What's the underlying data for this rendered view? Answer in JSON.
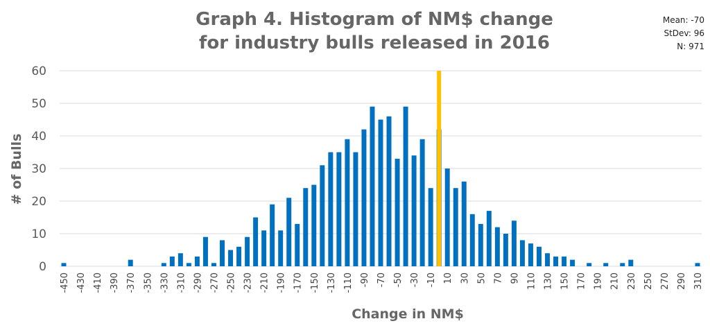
{
  "chart_data": {
    "type": "bar",
    "title_line_1": "Graph 4. Histogram of NM$ change",
    "title_line_2": "for industry bulls released in 2016",
    "xlabel": "Change in NM$",
    "ylabel": "# of Bulls",
    "ylim": [
      0,
      60
    ],
    "yticks": [
      "0",
      "10",
      "20",
      "30",
      "40",
      "50",
      "60"
    ],
    "grid": true,
    "bar_color": "#0070C0",
    "marker_color": "#FFC000",
    "marker_x": 0,
    "stats": {
      "mean": "Mean: -70",
      "stdev": "StDev: 96",
      "n": "N: 971"
    },
    "categories": [
      "-450",
      "-440",
      "-430",
      "-420",
      "-410",
      "-400",
      "-390",
      "-380",
      "-370",
      "-360",
      "-350",
      "-340",
      "-330",
      "-320",
      "-310",
      "-300",
      "-290",
      "-280",
      "-270",
      "-260",
      "-250",
      "-240",
      "-230",
      "-220",
      "-210",
      "-200",
      "-190",
      "-180",
      "-170",
      "-160",
      "-150",
      "-140",
      "-130",
      "-120",
      "-110",
      "-100",
      "-90",
      "-80",
      "-70",
      "-60",
      "-50",
      "-40",
      "-30",
      "-20",
      "-10",
      "0",
      "10",
      "20",
      "30",
      "40",
      "50",
      "60",
      "70",
      "80",
      "90",
      "100",
      "110",
      "120",
      "130",
      "140",
      "150",
      "160",
      "170",
      "180",
      "190",
      "200",
      "210",
      "220",
      "230",
      "240",
      "250",
      "260",
      "270",
      "280",
      "290",
      "300",
      "310"
    ],
    "tick_labels": [
      "-450",
      "-430",
      "-410",
      "-390",
      "-370",
      "-350",
      "-330",
      "-310",
      "-290",
      "-270",
      "-250",
      "-230",
      "-210",
      "-190",
      "-170",
      "-150",
      "-130",
      "-110",
      "-90",
      "-70",
      "-50",
      "-30",
      "-10",
      "10",
      "30",
      "50",
      "70",
      "90",
      "110",
      "130",
      "150",
      "170",
      "190",
      "210",
      "230",
      "250",
      "270",
      "290",
      "310"
    ],
    "values": [
      1,
      0,
      0,
      0,
      0,
      0,
      0,
      0,
      2,
      0,
      0,
      0,
      1,
      3,
      4,
      1,
      3,
      9,
      1,
      8,
      5,
      6,
      9,
      15,
      11,
      19,
      11,
      21,
      13,
      24,
      25,
      31,
      35,
      35,
      39,
      35,
      42,
      49,
      45,
      46,
      33,
      49,
      34,
      39,
      24,
      42,
      30,
      24,
      26,
      16,
      13,
      17,
      12,
      10,
      14,
      8,
      7,
      6,
      4,
      3,
      3,
      2,
      0,
      1,
      0,
      1,
      0,
      1,
      2,
      0,
      0,
      0,
      0,
      0,
      0,
      0,
      1
    ]
  }
}
